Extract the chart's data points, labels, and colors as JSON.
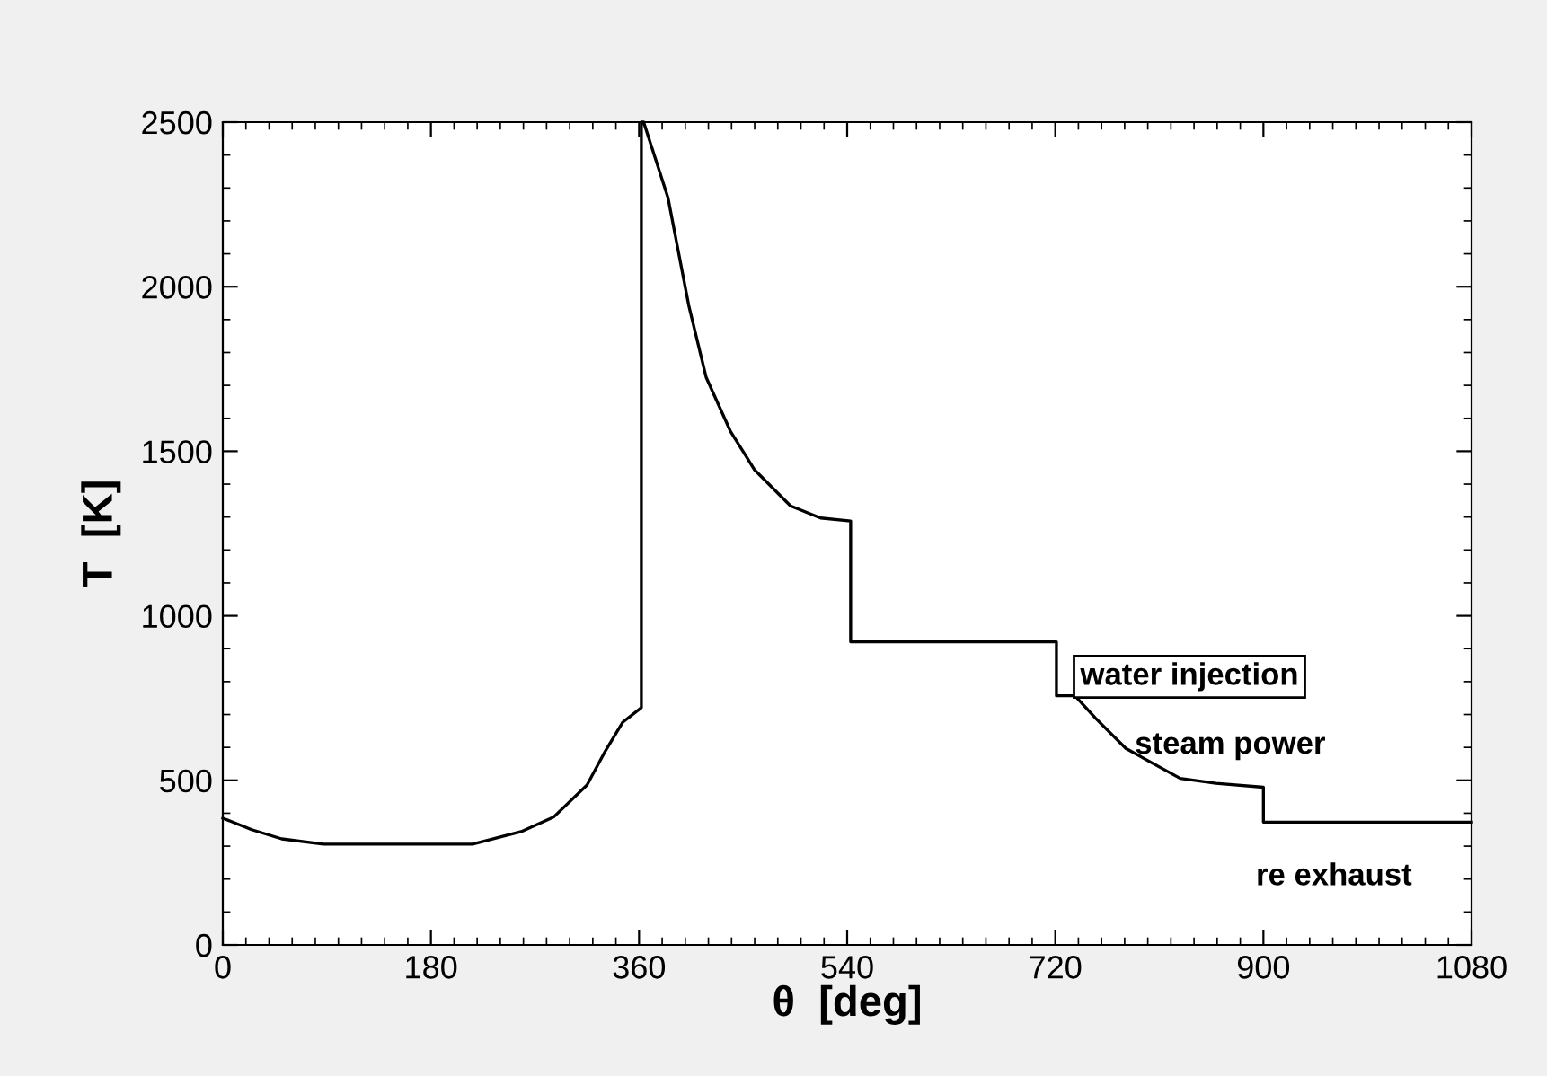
{
  "chart_data": {
    "type": "line",
    "xlabel": "θ  [deg]",
    "ylabel": "T  [K]",
    "series": [
      {
        "color": "#000000",
        "x": [
          0,
          25,
          51,
          87,
          150,
          216,
          258,
          286,
          315,
          331,
          346,
          362,
          362,
          364,
          385,
          403,
          418,
          439,
          460,
          491,
          517,
          543,
          543,
          721,
          721,
          737,
          755,
          781,
          828,
          859,
          900,
          900,
          1080
        ],
        "values": [
          385,
          350,
          322,
          306,
          306,
          306,
          344,
          388,
          486,
          590,
          677,
          721,
          2500,
          2500,
          2271,
          1943,
          1725,
          1561,
          1443,
          1334,
          1297,
          1288,
          921,
          921,
          757,
          757,
          688,
          597,
          506,
          491,
          479,
          373,
          373
        ]
      }
    ],
    "xlim": [
      0,
      1080
    ],
    "ylim": [
      0,
      2500
    ],
    "xticks": [
      0,
      180,
      360,
      540,
      720,
      900,
      1080
    ],
    "yticks": [
      0,
      500,
      1000,
      1500,
      2000,
      2500
    ],
    "annotations": [
      {
        "text": "water injection",
        "x": 720,
        "y": 921
      },
      {
        "text": "steam power",
        "x": 737,
        "y": 757
      },
      {
        "text": "re exhaust",
        "x": 900,
        "y": 373
      }
    ],
    "grid": false,
    "legend": false,
    "line_style": "solid",
    "marker": "none"
  }
}
